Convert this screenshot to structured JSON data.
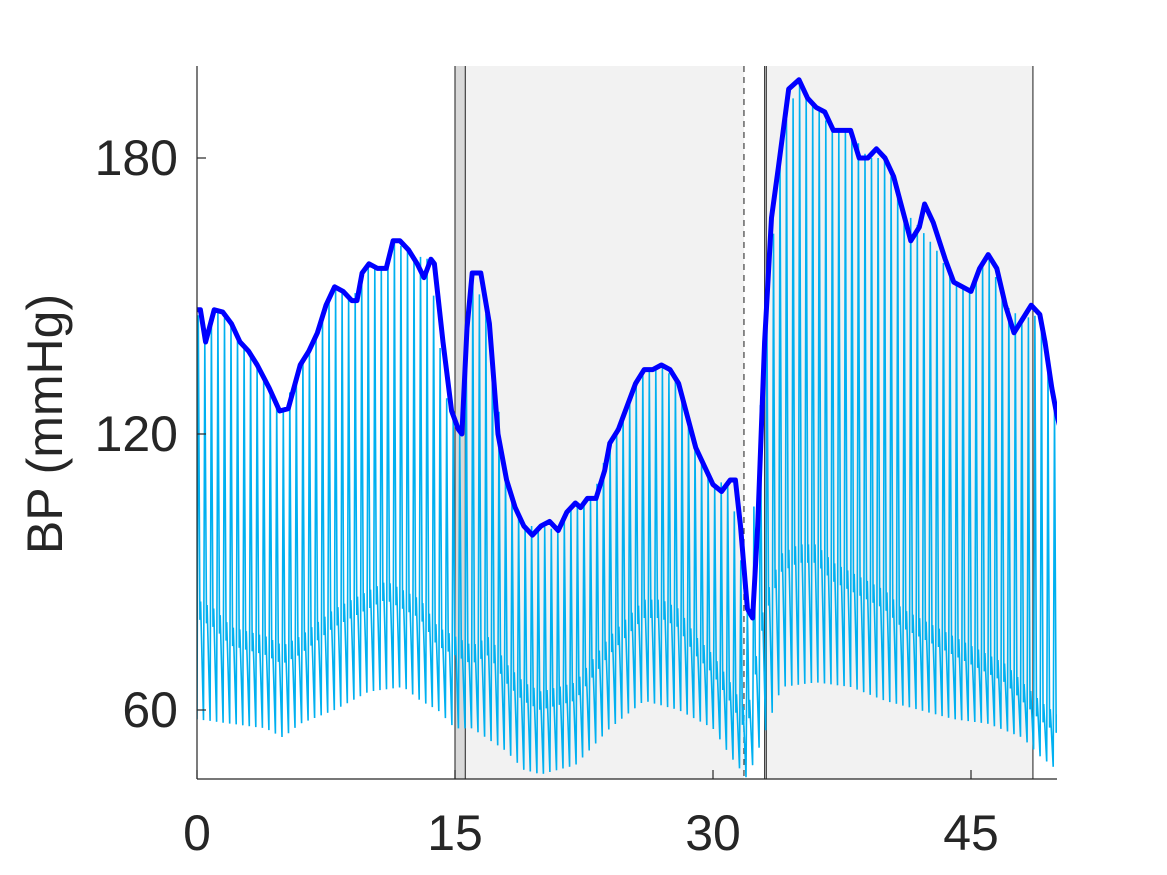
{
  "chart_data": {
    "type": "line",
    "title": "",
    "xlabel": "",
    "ylabel": "BP (mmHg)",
    "xlim": [
      0,
      50
    ],
    "ylim": [
      45,
      200
    ],
    "x_ticks": [
      0,
      15,
      30,
      45
    ],
    "y_ticks": [
      60,
      120,
      180
    ],
    "grid": false,
    "legend": "none",
    "shaded_regions": [
      {
        "x_start": 15.0,
        "x_end": 15.6,
        "color": "#d9d9d9"
      },
      {
        "x_start": 15.6,
        "x_end": 31.8,
        "color": "#f2f2f2"
      },
      {
        "x_start": 33.1,
        "x_end": 48.6,
        "color": "#f2f2f2"
      }
    ],
    "vertical_lines": [
      {
        "x": 15.0,
        "style": "solid"
      },
      {
        "x": 15.6,
        "style": "solid"
      },
      {
        "x": 31.8,
        "style": "dashed"
      },
      {
        "x": 33.0,
        "style": "solid"
      },
      {
        "x": 33.1,
        "style": "solid"
      },
      {
        "x": 48.6,
        "style": "solid"
      }
    ],
    "series": [
      {
        "color": "#0000ff",
        "points": [
          [
            0,
            147
          ],
          [
            0.2,
            147
          ],
          [
            0.5,
            140
          ],
          [
            1,
            147
          ],
          [
            1.5,
            146.5
          ],
          [
            2,
            144
          ],
          [
            2.5,
            140
          ],
          [
            3,
            138
          ],
          [
            3.5,
            135
          ],
          [
            4.2,
            130
          ],
          [
            4.8,
            125
          ],
          [
            5.3,
            125.5
          ],
          [
            6,
            135
          ],
          [
            6.5,
            138
          ],
          [
            7,
            142
          ],
          [
            7.5,
            148
          ],
          [
            8,
            152
          ],
          [
            8.5,
            151
          ],
          [
            9,
            149
          ],
          [
            9.3,
            149
          ],
          [
            9.6,
            155
          ],
          [
            10,
            157
          ],
          [
            10.5,
            156
          ],
          [
            11,
            156
          ],
          [
            11.4,
            162
          ],
          [
            11.8,
            162
          ],
          [
            12.3,
            160
          ],
          [
            12.8,
            157
          ],
          [
            13.2,
            154
          ],
          [
            13.6,
            158
          ],
          [
            13.8,
            157
          ],
          [
            14.3,
            140
          ],
          [
            14.8,
            125
          ],
          [
            15.2,
            121
          ],
          [
            15.4,
            120
          ],
          [
            15.7,
            143
          ],
          [
            16,
            155
          ],
          [
            16.5,
            155
          ],
          [
            17,
            144
          ],
          [
            17.5,
            120
          ],
          [
            18,
            110
          ],
          [
            18.5,
            104
          ],
          [
            19,
            100
          ],
          [
            19.5,
            98
          ],
          [
            20,
            100
          ],
          [
            20.5,
            101
          ],
          [
            21,
            99
          ],
          [
            21.5,
            103
          ],
          [
            22,
            105
          ],
          [
            22.3,
            104
          ],
          [
            22.7,
            106
          ],
          [
            23.2,
            106
          ],
          [
            23.7,
            112
          ],
          [
            24,
            118
          ],
          [
            24.5,
            121
          ],
          [
            25,
            126
          ],
          [
            25.5,
            131
          ],
          [
            26,
            134
          ],
          [
            26.5,
            134
          ],
          [
            27,
            135
          ],
          [
            27.5,
            134
          ],
          [
            28,
            131
          ],
          [
            28.5,
            124
          ],
          [
            29,
            117
          ],
          [
            29.5,
            113
          ],
          [
            30,
            109
          ],
          [
            30.5,
            107.5
          ],
          [
            31,
            110
          ],
          [
            31.3,
            110
          ],
          [
            31.6,
            100
          ],
          [
            32,
            82
          ],
          [
            32.3,
            80
          ],
          [
            32.6,
            100
          ],
          [
            33,
            140
          ],
          [
            33.4,
            167
          ],
          [
            33.8,
            178
          ],
          [
            34.4,
            195
          ],
          [
            35,
            197
          ],
          [
            35.5,
            193
          ],
          [
            36,
            191
          ],
          [
            36.5,
            190
          ],
          [
            37,
            186
          ],
          [
            37.5,
            186
          ],
          [
            38,
            186
          ],
          [
            38.5,
            180
          ],
          [
            39,
            180
          ],
          [
            39.5,
            182
          ],
          [
            40,
            180
          ],
          [
            40.5,
            176
          ],
          [
            41,
            169
          ],
          [
            41.5,
            162
          ],
          [
            42,
            165
          ],
          [
            42.3,
            170
          ],
          [
            42.8,
            166
          ],
          [
            43.5,
            158
          ],
          [
            44,
            153
          ],
          [
            44.5,
            152
          ],
          [
            45,
            151
          ],
          [
            45.5,
            156
          ],
          [
            46,
            159
          ],
          [
            46.5,
            156
          ],
          [
            47,
            148
          ],
          [
            47.5,
            142
          ],
          [
            48,
            145
          ],
          [
            48.5,
            148
          ],
          [
            49,
            146
          ],
          [
            49.3,
            140
          ],
          [
            49.7,
            130
          ],
          [
            50,
            124
          ],
          [
            50.4,
            118
          ]
        ]
      },
      {
        "color": "#00b0f0",
        "upper_envelope": [
          [
            0,
            147
          ],
          [
            0.5,
            140
          ],
          [
            1,
            147
          ],
          [
            2,
            144
          ],
          [
            3,
            138
          ],
          [
            4.2,
            130
          ],
          [
            5,
            125
          ],
          [
            6,
            135
          ],
          [
            7,
            142
          ],
          [
            8,
            152
          ],
          [
            9,
            149
          ],
          [
            10,
            157
          ],
          [
            11,
            156
          ],
          [
            11.5,
            162
          ],
          [
            12.5,
            159
          ],
          [
            13.5,
            158
          ],
          [
            14.5,
            128
          ],
          [
            15.3,
            120
          ],
          [
            16,
            155
          ],
          [
            17,
            144
          ],
          [
            18,
            110
          ],
          [
            19,
            100
          ],
          [
            20,
            100
          ],
          [
            21,
            99
          ],
          [
            22,
            105
          ],
          [
            23,
            106
          ],
          [
            24,
            118
          ],
          [
            25,
            126
          ],
          [
            26,
            134
          ],
          [
            27,
            135
          ],
          [
            28,
            131
          ],
          [
            29,
            117
          ],
          [
            30,
            109
          ],
          [
            31,
            110
          ],
          [
            32,
            82
          ],
          [
            33,
            140
          ],
          [
            34,
            185
          ],
          [
            35,
            197
          ],
          [
            36,
            191
          ],
          [
            37,
            186
          ],
          [
            38,
            186
          ],
          [
            39,
            180
          ],
          [
            40,
            180
          ],
          [
            41,
            169
          ],
          [
            42,
            165
          ],
          [
            43,
            160
          ],
          [
            44,
            153
          ],
          [
            45,
            151
          ],
          [
            46,
            159
          ],
          [
            47,
            148
          ],
          [
            48,
            145
          ],
          [
            49,
            146
          ],
          [
            50,
            124
          ]
        ],
        "lower_envelope": [
          [
            0,
            58
          ],
          [
            2,
            57
          ],
          [
            4,
            56
          ],
          [
            5,
            54
          ],
          [
            6,
            57
          ],
          [
            8,
            60
          ],
          [
            10,
            64
          ],
          [
            12,
            65
          ],
          [
            13,
            62
          ],
          [
            14,
            60
          ],
          [
            15,
            56
          ],
          [
            16,
            56
          ],
          [
            18,
            51
          ],
          [
            19,
            47
          ],
          [
            20,
            46
          ],
          [
            22,
            48
          ],
          [
            24,
            56
          ],
          [
            26,
            62
          ],
          [
            28,
            60
          ],
          [
            29,
            58
          ],
          [
            30,
            56
          ],
          [
            31,
            50
          ],
          [
            32,
            45
          ],
          [
            33,
            55
          ],
          [
            34,
            65
          ],
          [
            36,
            66
          ],
          [
            38,
            65
          ],
          [
            40,
            62
          ],
          [
            42,
            60
          ],
          [
            44,
            58
          ],
          [
            46,
            57
          ],
          [
            48,
            54
          ],
          [
            49,
            50
          ],
          [
            50,
            47
          ]
        ],
        "peak_offset_envelope": [
          [
            0,
            80
          ],
          [
            1,
            78
          ],
          [
            2,
            74
          ],
          [
            3,
            73
          ],
          [
            4,
            72
          ],
          [
            5,
            70
          ],
          [
            6,
            72
          ],
          [
            8,
            78
          ],
          [
            10,
            82
          ],
          [
            11,
            84
          ],
          [
            12,
            82
          ],
          [
            13,
            80
          ],
          [
            14,
            74
          ],
          [
            15,
            72
          ],
          [
            16,
            70
          ],
          [
            17,
            72
          ],
          [
            18,
            66
          ],
          [
            19,
            62
          ],
          [
            20,
            60
          ],
          [
            22,
            62
          ],
          [
            24,
            72
          ],
          [
            25,
            76
          ],
          [
            26,
            80
          ],
          [
            27,
            80
          ],
          [
            28,
            78
          ],
          [
            29,
            72
          ],
          [
            30,
            68
          ],
          [
            31,
            62
          ],
          [
            32,
            55
          ],
          [
            33,
            80
          ],
          [
            34,
            90
          ],
          [
            35,
            92
          ],
          [
            36,
            92
          ],
          [
            37,
            88
          ],
          [
            38,
            86
          ],
          [
            39,
            84
          ],
          [
            40,
            82
          ],
          [
            41,
            78
          ],
          [
            42,
            76
          ],
          [
            43,
            74
          ],
          [
            44,
            72
          ],
          [
            45,
            70
          ],
          [
            46,
            68
          ],
          [
            47,
            66
          ],
          [
            48,
            62
          ],
          [
            49,
            58
          ],
          [
            50,
            55
          ]
        ],
        "beat_period_s": 0.38
      }
    ]
  }
}
